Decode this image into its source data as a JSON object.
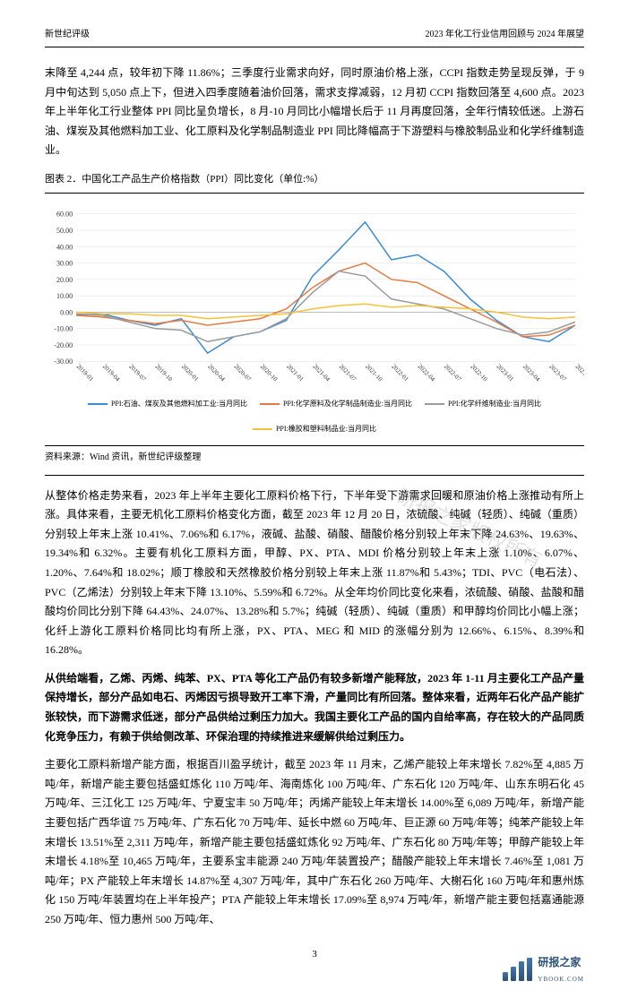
{
  "header": {
    "left": "新世纪评级",
    "right": "2023 年化工行业信用回顾与 2024 年展望"
  },
  "para1": "末降至 4,244 点，较年初下降 11.86%；三季度行业需求向好，同时原油价格上涨，CCPI 指数走势呈现反弹，于 9 月中旬达到 5,050 点上下，但进入四季度随着油价回落，需求支撑减弱，12 月初 CCPI 指数回落至 4,600 点。2023 年上半年化工行业整体 PPI 同比呈负增长，8 月-10 月同比小幅增长后于 11 月再度回落，全年行情较低迷。上游石油、煤炭及其他燃料加工业、化工原料及化学制品制造业 PPI 同比降幅高于下游塑料与橡胶制品业和化学纤维制造业。",
  "chart": {
    "title": "图表 2．中国化工产品生产价格指数（PPI）同比变化（单位:%）",
    "ylim": [
      -30,
      60
    ],
    "ytick_step": 10,
    "xlabels": [
      "2019-01",
      "2019-04",
      "2019-07",
      "2019-10",
      "2020-01",
      "2020-04",
      "2020-07",
      "2020-10",
      "2021-01",
      "2021-04",
      "2021-07",
      "2021-10",
      "2022-01",
      "2022-04",
      "2022-07",
      "2022-10",
      "2023-01",
      "2023-04",
      "2023-07",
      "2023-10"
    ],
    "series": [
      {
        "name": "PPI:石油、煤炭及其他燃料加工业:当月同比",
        "color": "#3b8bd6",
        "values": [
          -2,
          -1,
          -5,
          -8,
          -4,
          -25,
          -15,
          -12,
          -5,
          22,
          38,
          55,
          32,
          35,
          25,
          8,
          -5,
          -15,
          -18,
          -8
        ]
      },
      {
        "name": "PPI:化学原料及化学制品制造业:当月同比",
        "color": "#e57b41",
        "values": [
          -2,
          -3,
          -5,
          -7,
          -5,
          -8,
          -6,
          -4,
          2,
          15,
          25,
          30,
          20,
          18,
          10,
          2,
          -6,
          -15,
          -14,
          -8
        ]
      },
      {
        "name": "PPI:化学纤维制造业:当月同比",
        "color": "#9b9b9b",
        "values": [
          -1,
          -2,
          -6,
          -10,
          -11,
          -18,
          -15,
          -12,
          -4,
          12,
          25,
          22,
          8,
          5,
          2,
          -4,
          -10,
          -14,
          -12,
          -6
        ]
      },
      {
        "name": "PPI:橡胶和塑料制品业:当月同比",
        "color": "#f5c23a",
        "values": [
          0,
          -1,
          -1,
          -2,
          -2,
          -4,
          -3,
          -2,
          -1,
          2,
          4,
          5,
          3,
          4,
          3,
          2,
          0,
          -3,
          -4,
          -3
        ]
      }
    ],
    "grid_color": "#dddddd",
    "background_color": "#ffffff"
  },
  "source": "资料来源：Wind 资讯，新世纪评级整理",
  "para2": "从整体价格走势来看，2023 年上半年主要化工原料价格下行，下半年受下游需求回暖和原油价格上涨推动有所上涨。具体来看，主要无机化工原料价格变化方面，截至 2023 年 12 月 20 日，浓硫酸、纯碱（轻质）、纯碱（重质）分别较上年末上涨 10.41%、7.06%和 6.17%，液碱、盐酸、硝酸、醋酸价格分别较上年末下降 24.63%、19.63%、19.34%和 6.32%。主要有机化工原料方面，甲醇、PX、PTA、MDI 价格分别较上年末上涨 1.10%、6.07%、1.20%、7.64%和 18.02%；顺丁橡胶和天然橡胶价格分别较上年末上涨 11.87%和 5.43%；TDI、PVC（电石法）、PVC（乙烯法）分别较上年末下降 13.10%、5.59%和 6.72%。从全年均价同比变化来看，浓硫酸、硝酸、盐酸和醋酸均价同比分别下降 64.43%、24.07%、13.28%和 5.7%；纯碱（轻质）、纯碱（重质）和甲醇均价同比小幅上涨；化纤上游化工原料价格同比均有所上涨，PX、PTA、MEG 和 MID 的涨幅分别为 12.66%、6.15%、8.39%和 16.28%。",
  "para3_bold": "从供给端看，乙烯、丙烯、纯苯、PX、PTA 等化工产品仍有较多新增产能释放，2023 年 1-11 月主要化工产品产量保持增长，部分产品如电石、丙烯因亏损导致开工率下滑，产量同比有所回落。整体来看，近两年石化产品产能扩张较快，而下游需求低迷，部分产品供给过剩压力加大。我国主要化工产品的国内自给率高，存在较大的产品同质化竞争压力，有赖于供给侧改革、环保治理的持续推进来缓解供给过剩压力。",
  "para4": "主要化工原料新增产能方面，根据百川盈孚统计，截至 2023 年 11 月末，乙烯产能较上年末增长 7.82%至 4,885 万吨/年，新增产能主要包括盛虹炼化 110 万吨/年、海南炼化 100 万吨/年、广东石化 120 万吨/年、山东东明石化 45 万吨/年、三江化工 125 万吨/年、宁夏宝丰 50 万吨/年；丙烯产能较上年末增长 14.00%至 6,089 万吨/年，新增产能主要包括广西华谊 75 万吨/年、广东石化 70 万吨/年、延长中燃 60 万吨/年、巨正源 60 万吨/年等；纯苯产能较上年末增长 13.51%至 2,311 万吨/年，新增产能主要包括盛虹炼化 92 万吨/年、广东石化 80 万吨/年等；甲醇产能较上年末增长 4.18%至 10,465 万吨/年，主要系宝丰能源 240 万吨/年装置投产；醋酸产能较上年末增长 7.46%至 1,081 万吨/年；PX 产能较上年末增长 14.87%至 4,307 万吨/年，其中广东石化 260 万吨/年、大榭石化 160 万吨/年和惠州炼化 150 万吨/年装置均在上半年投产；PTA 产能较上年末增长 17.09%至 8,974 万吨/年，新增产能主要包括嘉通能源 250 万吨/年、恒力惠州 500 万吨/年、",
  "page_num": "3",
  "watermark_text": "研报之家",
  "watermark_sub": "YBOOK.COM",
  "watermark_diag": "研报之家版权所有"
}
